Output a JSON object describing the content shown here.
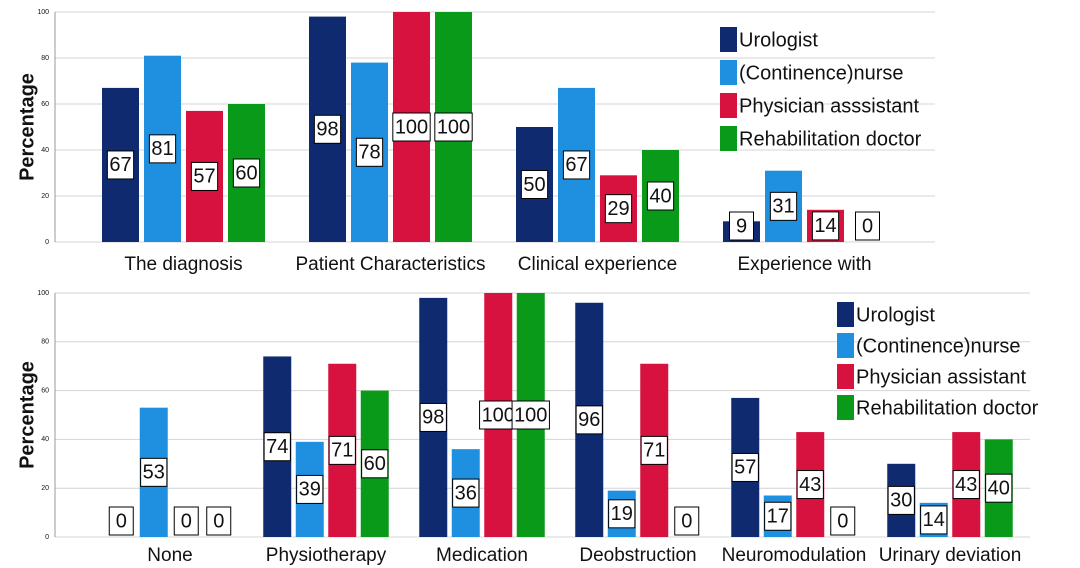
{
  "chart_data": [
    {
      "type": "bar",
      "ylabel": "Percentage",
      "categories": [
        "The diagnosis",
        "Patient Characteristics",
        "Clinical experience",
        "Experience with"
      ],
      "ylim": [
        0,
        100
      ],
      "yticks": [
        0,
        20,
        40,
        60,
        80,
        100
      ],
      "grid": true,
      "legend": "upper right",
      "series": [
        {
          "name": "Urologist",
          "color": "#0f2a6e",
          "values": [
            67,
            98,
            50,
            9
          ]
        },
        {
          "name": "(Continence)nurse",
          "color": "#1f8fe0",
          "values": [
            81,
            78,
            67,
            31
          ]
        },
        {
          "name": "Physician asssistant",
          "color": "#d7123f",
          "values": [
            57,
            100,
            29,
            14
          ]
        },
        {
          "name": "Rehabilitation doctor",
          "color": "#0a9a1a",
          "values": [
            60,
            100,
            40,
            0
          ]
        }
      ]
    },
    {
      "type": "bar",
      "ylabel": "Percentage",
      "categories": [
        "None",
        "Physiotherapy",
        "Medication",
        "Deobstruction",
        "Neuromodulation",
        "Urinary deviation"
      ],
      "ylim": [
        0,
        100
      ],
      "yticks": [
        0,
        20,
        40,
        60,
        80,
        100
      ],
      "grid": true,
      "legend": "upper right",
      "series": [
        {
          "name": "Urologist",
          "color": "#0f2a6e",
          "values": [
            0,
            74,
            98,
            96,
            57,
            30
          ]
        },
        {
          "name": "(Continence)nurse",
          "color": "#1f8fe0",
          "values": [
            53,
            39,
            36,
            19,
            17,
            14
          ]
        },
        {
          "name": "Physician assistant",
          "color": "#d7123f",
          "values": [
            0,
            71,
            100,
            71,
            43,
            43
          ]
        },
        {
          "name": "Rehabilitation doctor",
          "color": "#0a9a1a",
          "values": [
            0,
            60,
            100,
            0,
            0,
            40
          ]
        }
      ]
    }
  ]
}
